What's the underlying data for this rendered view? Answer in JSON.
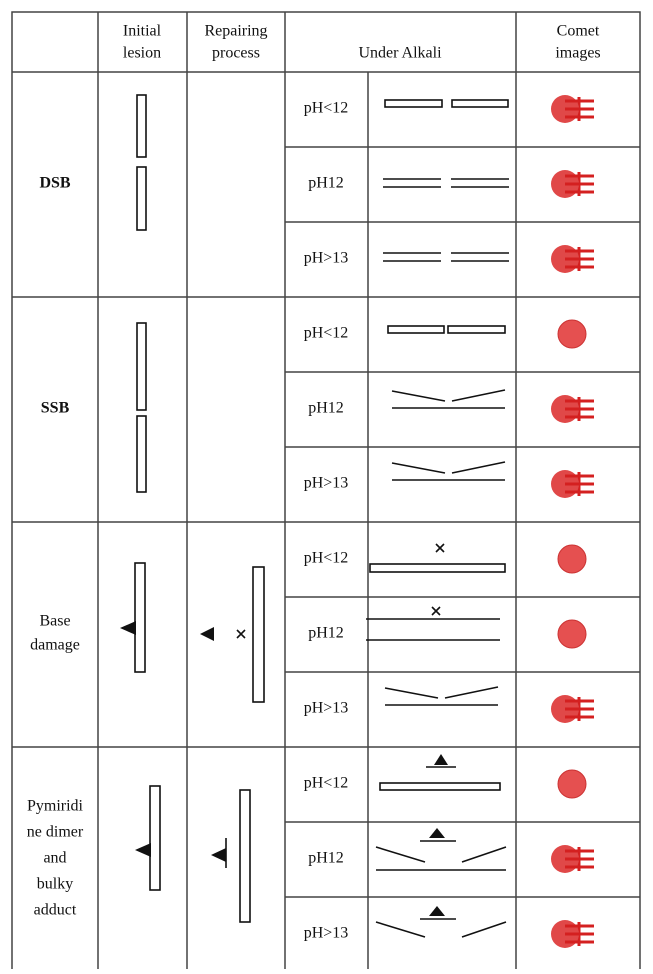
{
  "header": {
    "initial_lesion": [
      "Initial",
      "lesion"
    ],
    "repairing_process": [
      "Repairing",
      "process"
    ],
    "under_alkali": "Under Alkali",
    "comet_images": [
      "Comet",
      "images"
    ]
  },
  "groups": [
    {
      "label": [
        "DSB"
      ],
      "rows": [
        "pH<12",
        "pH12",
        "pH>13"
      ]
    },
    {
      "label": [
        "SSB"
      ],
      "rows": [
        "pH<12",
        "pH12",
        "pH>13"
      ]
    },
    {
      "label": [
        "Base",
        "damage"
      ],
      "rows": [
        "pH<12",
        "pH12",
        "pH>13"
      ]
    },
    {
      "label": [
        "Pymiridi",
        "ne dimer",
        "and",
        "bulky",
        "adduct"
      ],
      "rows": [
        "pH<12",
        "pH12",
        "pH>13"
      ]
    }
  ]
}
